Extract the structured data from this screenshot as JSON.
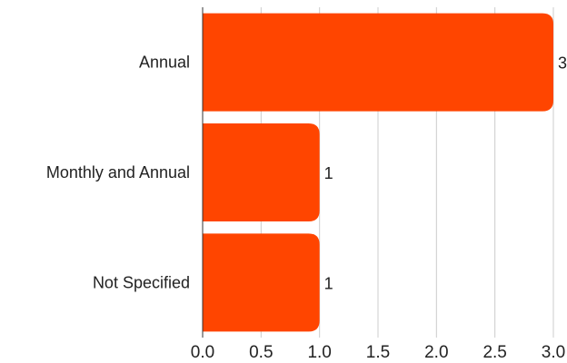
{
  "chart_data": {
    "type": "bar",
    "orientation": "horizontal",
    "categories": [
      "Annual",
      "Monthly and Annual",
      "Not Specified"
    ],
    "values": [
      3,
      1,
      1
    ],
    "data_labels": [
      "3",
      "1",
      "1"
    ],
    "xlim": [
      0,
      3
    ],
    "x_ticks": [
      "0.0",
      "0.5",
      "1.0",
      "1.5",
      "2.0",
      "2.5",
      "3.0"
    ],
    "grid": "vertical",
    "bar_color": "#ff4500",
    "grid_color": "#cccccc",
    "axis_color": "#333333"
  }
}
